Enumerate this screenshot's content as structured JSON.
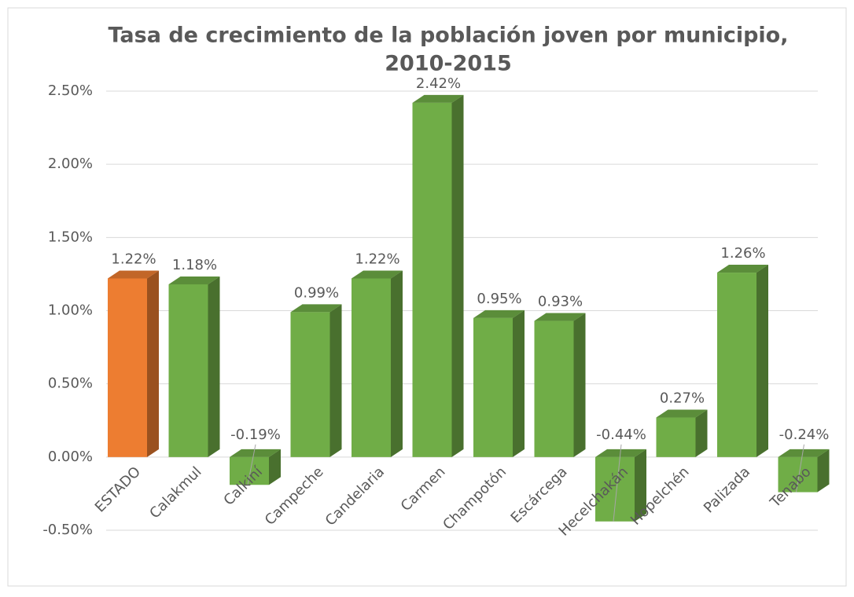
{
  "chart_data": {
    "type": "bar3d",
    "title": [
      "Tasa de crecimiento de la población joven por municipio,",
      "2010-2015"
    ],
    "categories": [
      "ESTADO",
      "Calakmul",
      "Calkiní",
      "Campeche",
      "Candelaria",
      "Carmen",
      "Champotón",
      "Escárcega",
      "Hecelchakán",
      "Hopelchén",
      "Palizada",
      "Tenabo"
    ],
    "values": [
      1.22,
      1.18,
      -0.19,
      0.99,
      1.22,
      2.42,
      0.95,
      0.93,
      -0.44,
      0.27,
      1.26,
      -0.24
    ],
    "value_labels": [
      "1.22%",
      "1.18%",
      "-0.19%",
      "0.99%",
      "1.22%",
      "2.42%",
      "0.95%",
      "0.93%",
      "-0.44%",
      "0.27%",
      "1.26%",
      "-0.24%"
    ],
    "colors": [
      "#ed7d31",
      "#70ad47",
      "#70ad47",
      "#70ad47",
      "#70ad47",
      "#70ad47",
      "#70ad47",
      "#70ad47",
      "#70ad47",
      "#70ad47",
      "#70ad47",
      "#70ad47"
    ],
    "ylim": [
      -0.5,
      2.5
    ],
    "yticks": [
      {
        "value": -0.5,
        "label": "-0.50%"
      },
      {
        "value": 0,
        "label": "0.00%"
      },
      {
        "value": 0.5,
        "label": "0.50%"
      },
      {
        "value": 1,
        "label": "1.00%"
      },
      {
        "value": 1.5,
        "label": "1.50%"
      },
      {
        "value": 2,
        "label": "2.00%"
      },
      {
        "value": 2.5,
        "label": "2.50%"
      }
    ],
    "grid": true
  }
}
